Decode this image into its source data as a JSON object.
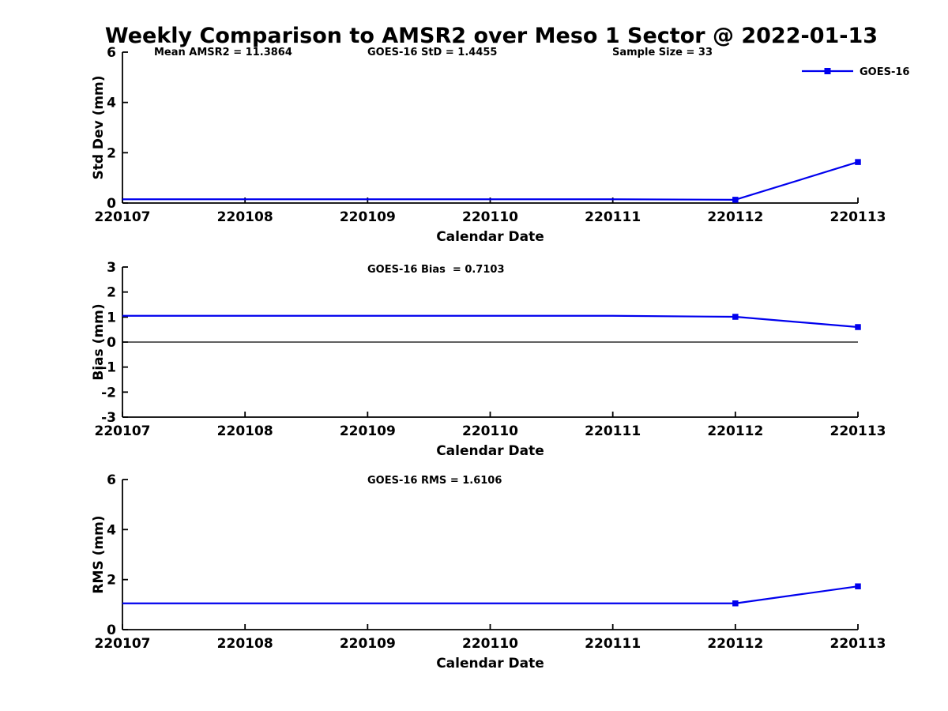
{
  "figure": {
    "title": "Weekly Comparison to AMSR2 over Meso 1 Sector @ 2022-01-13",
    "background_color": "#ffffff",
    "axis_color": "#000000",
    "series_color": "#0000ee"
  },
  "chart_data": [
    {
      "type": "line",
      "ylabel": "Std Dev (mm)",
      "xlabel": "Calendar Date",
      "categories": [
        "220107",
        "220108",
        "220109",
        "220110",
        "220111",
        "220112",
        "220113"
      ],
      "ylim": [
        0,
        6
      ],
      "yticks": [
        0,
        2,
        4,
        6
      ],
      "grid": false,
      "legend": {
        "position": "top-right",
        "entries": [
          "GOES-16"
        ]
      },
      "series": [
        {
          "name": "GOES-16",
          "color": "#0000ee",
          "values": [
            0.15,
            0.15,
            0.15,
            0.15,
            0.15,
            0.13,
            1.63
          ],
          "marker": "square",
          "marker_points": [
            "220112",
            "220113"
          ]
        }
      ],
      "annotations": [
        {
          "text": "Mean AMSR2 = 11.3864"
        },
        {
          "text": "GOES-16 StD = 1.4455"
        },
        {
          "text": "Sample Size = 33"
        }
      ]
    },
    {
      "type": "line",
      "ylabel": "Bias (mm)",
      "xlabel": "Calendar Date",
      "categories": [
        "220107",
        "220108",
        "220109",
        "220110",
        "220111",
        "220112",
        "220113"
      ],
      "ylim": [
        -3,
        3
      ],
      "yticks": [
        -3,
        -2,
        -1,
        0,
        1,
        2,
        3
      ],
      "grid": false,
      "zero_line": true,
      "series": [
        {
          "name": "GOES-16",
          "color": "#0000ee",
          "values": [
            1.05,
            1.05,
            1.05,
            1.05,
            1.05,
            1.01,
            0.6
          ],
          "marker": "square",
          "marker_points": [
            "220112",
            "220113"
          ]
        }
      ],
      "annotations": [
        {
          "text": "GOES-16 Bias  = 0.7103"
        }
      ]
    },
    {
      "type": "line",
      "ylabel": "RMS (mm)",
      "xlabel": "Calendar Date",
      "categories": [
        "220107",
        "220108",
        "220109",
        "220110",
        "220111",
        "220112",
        "220113"
      ],
      "ylim": [
        0,
        6
      ],
      "yticks": [
        0,
        2,
        4,
        6
      ],
      "grid": false,
      "series": [
        {
          "name": "GOES-16",
          "color": "#0000ee",
          "values": [
            1.05,
            1.05,
            1.05,
            1.05,
            1.05,
            1.05,
            1.73
          ],
          "marker": "square",
          "marker_points": [
            "220112",
            "220113"
          ]
        }
      ],
      "annotations": [
        {
          "text": "GOES-16 RMS = 1.6106"
        }
      ]
    }
  ]
}
